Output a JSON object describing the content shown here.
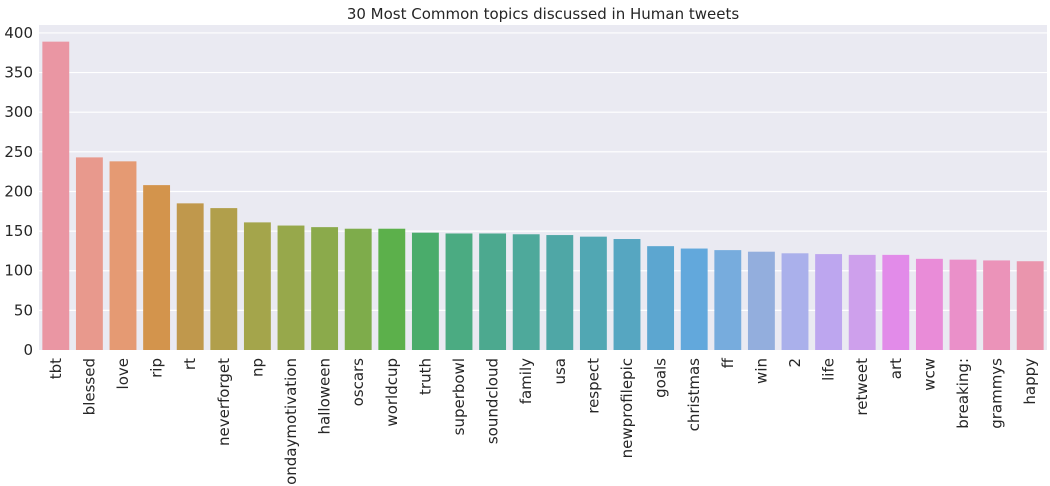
{
  "chart_data": {
    "type": "bar",
    "title": "30 Most Common topics discussed in Human tweets",
    "xlabel": "",
    "ylabel": "",
    "ylim": [
      0,
      410
    ],
    "yticks": [
      0,
      50,
      100,
      150,
      200,
      250,
      300,
      350,
      400
    ],
    "grid": true,
    "categories": [
      "tbt",
      "blessed",
      "love",
      "rip",
      "rt",
      "neverforget",
      "np",
      "mondaymotivation",
      "halloween",
      "oscars",
      "worldcup",
      "truth",
      "superbowl",
      "soundcloud",
      "family",
      "usa",
      "respect",
      "newprofilepic",
      "goals",
      "christmas",
      "ff",
      "win",
      "2",
      "life",
      "retweet",
      "art",
      "wcw",
      "breaking:",
      "grammys",
      "happy"
    ],
    "values": [
      389,
      243,
      238,
      208,
      185,
      179,
      161,
      157,
      155,
      153,
      153,
      148,
      147,
      147,
      146,
      145,
      143,
      140,
      131,
      128,
      126,
      124,
      122,
      121,
      120,
      120,
      115,
      114,
      113,
      112
    ],
    "colors": [
      "#ea96a3",
      "#e8998d",
      "#e59a73",
      "#d3944c",
      "#c0984c",
      "#b19f4b",
      "#a4a54b",
      "#97a84b",
      "#8baa4b",
      "#7eac4b",
      "#5cb04b",
      "#4aac6b",
      "#4bab82",
      "#4ca98f",
      "#4ea99b",
      "#4fa7a6",
      "#51a7b3",
      "#56a6c1",
      "#5ca6d0",
      "#62a8dc",
      "#77acdd",
      "#93aedd",
      "#aab0eb",
      "#bda6ef",
      "#cea0ec",
      "#e28be9",
      "#e98cd8",
      "#ea90c9",
      "#eb93b9",
      "#ea95ad"
    ]
  }
}
